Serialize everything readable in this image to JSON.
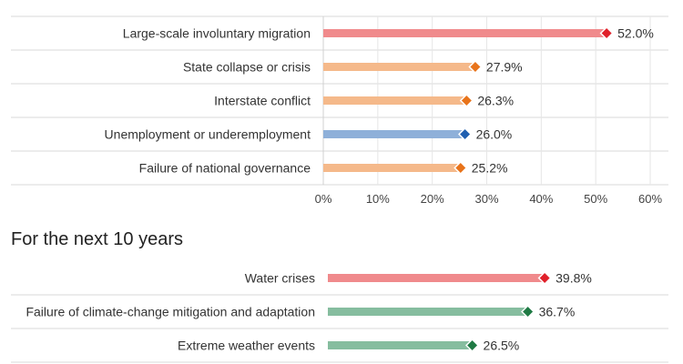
{
  "chart_data": [
    {
      "type": "bar",
      "title": "",
      "categories": [
        "Large-scale involuntary migration",
        "State collapse or crisis",
        "Interstate conflict",
        "Unemployment or underemployment",
        "Failure of national governance"
      ],
      "values": [
        52.0,
        27.9,
        26.3,
        26.0,
        25.2
      ],
      "value_labels": [
        "52.0%",
        "27.9%",
        "26.3%",
        "26.0%",
        "25.2%"
      ],
      "bar_colors": [
        "#f08a8c",
        "#f5b98a",
        "#f5b98a",
        "#8fb0d9",
        "#f5b98a"
      ],
      "marker_colors": [
        "#e0202a",
        "#e8731a",
        "#e8731a",
        "#1f5fb0",
        "#e8731a"
      ],
      "xlim": [
        0,
        60
      ],
      "xticks": [
        0,
        10,
        20,
        30,
        40,
        50,
        60
      ],
      "xtick_labels": [
        "0%",
        "10%",
        "20%",
        "30%",
        "40%",
        "50%",
        "60%"
      ],
      "grid": true,
      "legend": "none"
    },
    {
      "type": "bar",
      "title": "For the next 10 years",
      "categories": [
        "Water crises",
        "Failure of climate-change mitigation and adaptation",
        "Extreme weather events"
      ],
      "values": [
        39.8,
        36.7,
        26.5
      ],
      "value_labels": [
        "39.8%",
        "36.7%",
        "26.5%"
      ],
      "bar_colors": [
        "#f08a8c",
        "#86bd9f",
        "#86bd9f"
      ],
      "marker_colors": [
        "#e0202a",
        "#1f7a44",
        "#1f7a44"
      ],
      "xlim": [
        0,
        60
      ],
      "grid": true,
      "legend": "none"
    }
  ]
}
